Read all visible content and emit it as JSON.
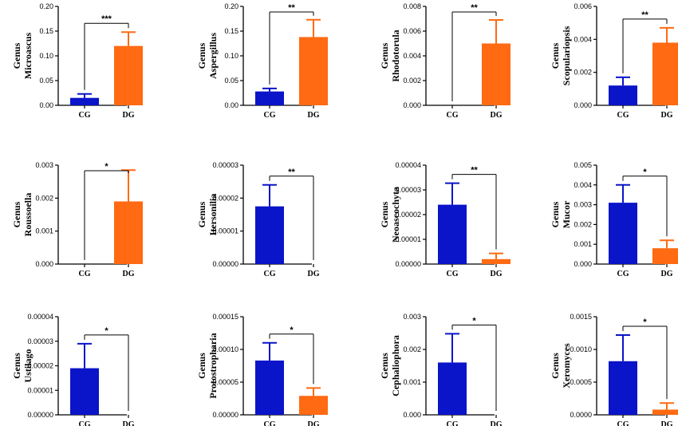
{
  "colors": {
    "CG": "#0a14c8",
    "DG": "#ff6a12",
    "axis": "#000000"
  },
  "chart_data": [
    {
      "type": "bar",
      "categories": [
        "CG",
        "DG"
      ],
      "ylabel": [
        "Genus",
        "Microascus"
      ],
      "ylim": [
        0,
        0.2
      ],
      "yticks": [
        "0.00",
        "0.05",
        "0.10",
        "0.15",
        "0.20"
      ],
      "values": [
        0.015,
        0.12
      ],
      "errors": [
        0.008,
        0.028
      ],
      "significance": "***"
    },
    {
      "type": "bar",
      "categories": [
        "CG",
        "DG"
      ],
      "ylabel": [
        "Genus",
        "Aspergillus"
      ],
      "ylim": [
        0,
        0.2
      ],
      "yticks": [
        "0.00",
        "0.05",
        "0.10",
        "0.15",
        "0.20"
      ],
      "values": [
        0.028,
        0.138
      ],
      "errors": [
        0.006,
        0.035
      ],
      "significance": "**"
    },
    {
      "type": "bar",
      "categories": [
        "CG",
        "DG"
      ],
      "ylabel": [
        "Genus",
        "Rhodotorula"
      ],
      "ylim": [
        0,
        0.008
      ],
      "yticks": [
        "0.000",
        "0.002",
        "0.004",
        "0.006",
        "0.008"
      ],
      "values": [
        0.0,
        0.005
      ],
      "errors": [
        0.0,
        0.0019
      ],
      "significance": "**"
    },
    {
      "type": "bar",
      "categories": [
        "CG",
        "DG"
      ],
      "ylabel": [
        "Genus",
        "Scopulariopsis"
      ],
      "ylim": [
        0,
        0.006
      ],
      "yticks": [
        "0.000",
        "0.002",
        "0.004",
        "0.006"
      ],
      "values": [
        0.0012,
        0.0038
      ],
      "errors": [
        0.0005,
        0.0009
      ],
      "significance": "**"
    },
    {
      "type": "bar",
      "categories": [
        "CG",
        "DG"
      ],
      "ylabel": [
        "Genus",
        "Roussoella"
      ],
      "ylim": [
        0,
        0.003
      ],
      "yticks": [
        "0.000",
        "0.001",
        "0.002",
        "0.003"
      ],
      "values": [
        0.0,
        0.0019
      ],
      "errors": [
        0.0,
        0.00095
      ],
      "significance": "*"
    },
    {
      "type": "bar",
      "categories": [
        "CG",
        "DG"
      ],
      "ylabel": [
        "Genus",
        "Itersonilia"
      ],
      "ylim": [
        0,
        3e-05
      ],
      "yticks": [
        "0.00000",
        "0.00001",
        "0.00002",
        "0.00003"
      ],
      "values": [
        1.75e-05,
        0.0
      ],
      "errors": [
        6.5e-06,
        0.0
      ],
      "significance": "**"
    },
    {
      "type": "bar",
      "categories": [
        "CG",
        "DG"
      ],
      "ylabel": [
        "Genus",
        "Neoascochyta"
      ],
      "ylim": [
        0,
        4e-05
      ],
      "yticks": [
        "0.00000",
        "0.00001",
        "0.00002",
        "0.00003",
        "0.00004"
      ],
      "values": [
        2.4e-05,
        2e-06
      ],
      "errors": [
        8.7e-06,
        2.3e-06
      ],
      "significance": "**"
    },
    {
      "type": "bar",
      "categories": [
        "CG",
        "DG"
      ],
      "ylabel": [
        "Genus",
        "Mucor"
      ],
      "ylim": [
        0,
        0.005
      ],
      "yticks": [
        "0.000",
        "0.001",
        "0.002",
        "0.003",
        "0.004",
        "0.005"
      ],
      "values": [
        0.0031,
        0.0008
      ],
      "errors": [
        0.0009,
        0.0004
      ],
      "significance": "*"
    },
    {
      "type": "bar",
      "categories": [
        "CG",
        "DG"
      ],
      "ylabel": [
        "Genus",
        "Ustilago"
      ],
      "ylim": [
        0,
        4e-05
      ],
      "yticks": [
        "0.00000",
        "0.00001",
        "0.00002",
        "0.00003",
        "0.00004"
      ],
      "values": [
        1.9e-05,
        0.0
      ],
      "errors": [
        1e-05,
        0.0
      ],
      "significance": "*"
    },
    {
      "type": "bar",
      "categories": [
        "CG",
        "DG"
      ],
      "ylabel": [
        "Genus",
        "Protostropharia"
      ],
      "ylim": [
        0,
        0.00015
      ],
      "yticks": [
        "0.00000",
        "0.00005",
        "0.00010",
        "0.00015"
      ],
      "values": [
        8.3e-05,
        2.9e-05
      ],
      "errors": [
        2.7e-05,
        1.2e-05
      ],
      "significance": "*"
    },
    {
      "type": "bar",
      "categories": [
        "CG",
        "DG"
      ],
      "ylabel": [
        "Genus",
        "Cephaliophora"
      ],
      "ylim": [
        0,
        0.003
      ],
      "yticks": [
        "0.000",
        "0.001",
        "0.002",
        "0.003"
      ],
      "values": [
        0.0016,
        0.0
      ],
      "errors": [
        0.00088,
        0.0
      ],
      "significance": "*"
    },
    {
      "type": "bar",
      "categories": [
        "CG",
        "DG"
      ],
      "ylabel": [
        "Genus",
        "Xeromyces"
      ],
      "ylim": [
        0,
        0.0015
      ],
      "yticks": [
        "0.0000",
        "0.0005",
        "0.0010",
        "0.0015"
      ],
      "values": [
        0.00082,
        8e-05
      ],
      "errors": [
        0.0004,
        0.0001
      ],
      "significance": "*"
    }
  ]
}
